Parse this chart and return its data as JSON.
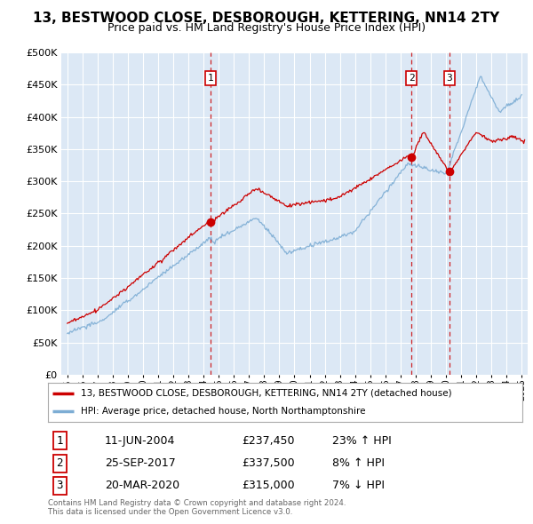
{
  "title": "13, BESTWOOD CLOSE, DESBOROUGH, KETTERING, NN14 2TY",
  "subtitle": "Price paid vs. HM Land Registry's House Price Index (HPI)",
  "legend_line1": "13, BESTWOOD CLOSE, DESBOROUGH, KETTERING, NN14 2TY (detached house)",
  "legend_line2": "HPI: Average price, detached house, North Northamptonshire",
  "transactions": [
    {
      "num": 1,
      "date": "11-JUN-2004",
      "price": "£237,450",
      "pct": "23%",
      "dir": "↑"
    },
    {
      "num": 2,
      "date": "25-SEP-2017",
      "price": "£337,500",
      "pct": "8%",
      "dir": "↑"
    },
    {
      "num": 3,
      "date": "20-MAR-2020",
      "price": "£315,000",
      "pct": "7%",
      "dir": "↓"
    }
  ],
  "transaction_years": [
    2004.44,
    2017.73,
    2020.22
  ],
  "transaction_prices": [
    237450,
    337500,
    315000
  ],
  "sale_color": "#cc0000",
  "hpi_color": "#7dadd4",
  "background_color": "#ffffff",
  "plot_bg_color": "#dce8f5",
  "grid_color": "#ffffff",
  "vline_color": "#cc0000",
  "footer": "Contains HM Land Registry data © Crown copyright and database right 2024.\nThis data is licensed under the Open Government Licence v3.0.",
  "ylim": [
    0,
    500000
  ],
  "yticks": [
    0,
    50000,
    100000,
    150000,
    200000,
    250000,
    300000,
    350000,
    400000,
    450000,
    500000
  ],
  "xlim_start": 1994.6,
  "xlim_end": 2025.4,
  "title_fontsize": 11,
  "subtitle_fontsize": 9
}
